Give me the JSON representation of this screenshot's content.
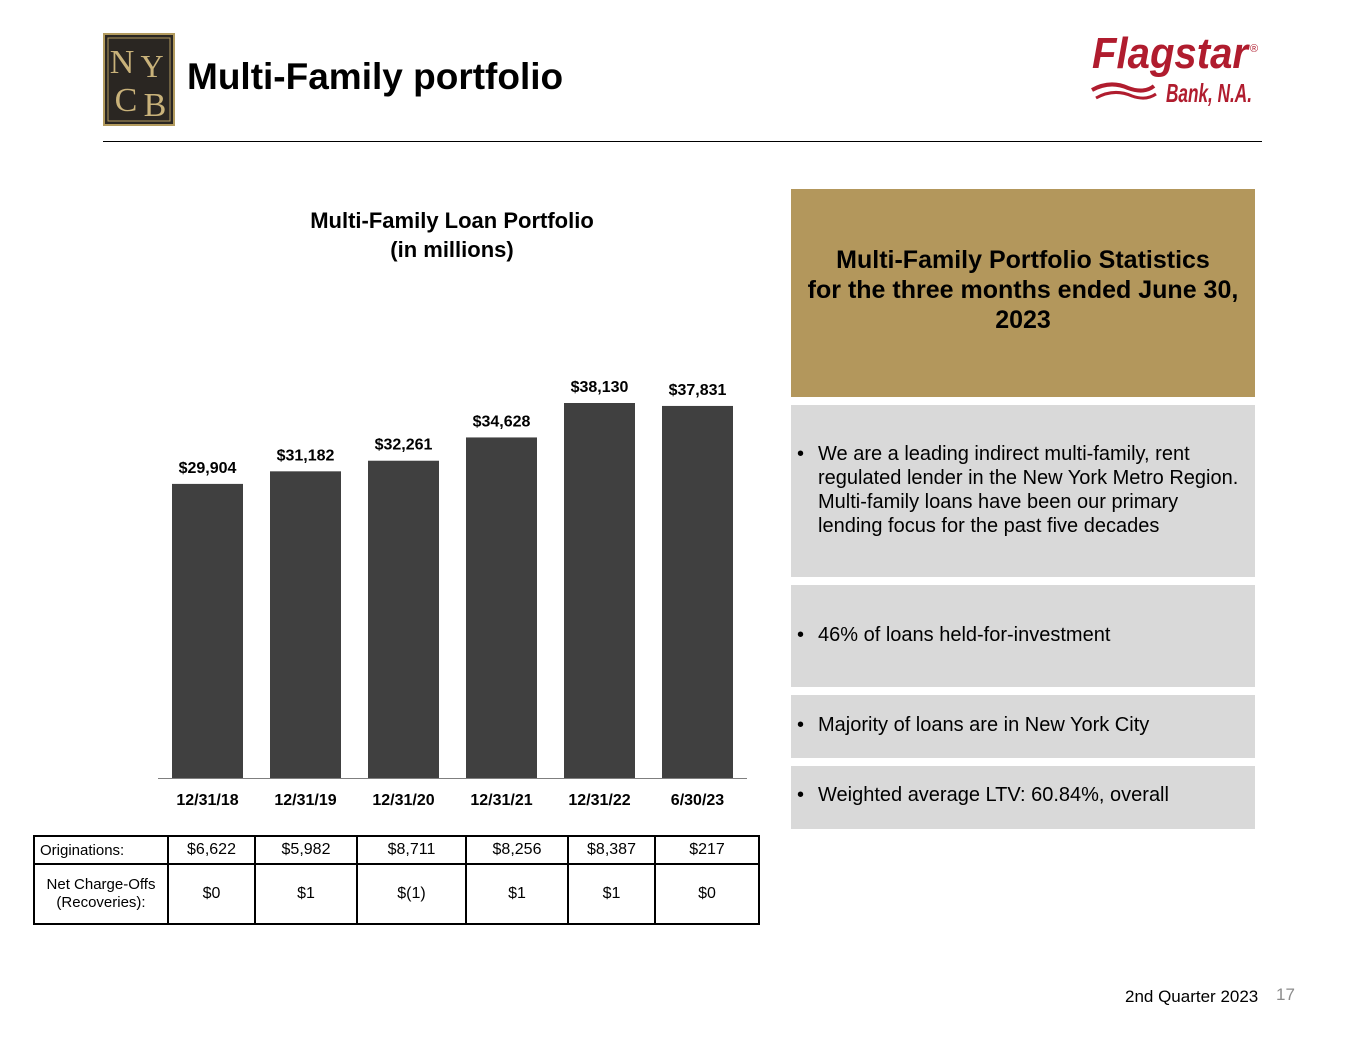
{
  "header": {
    "title": "Multi-Family portfolio",
    "logo_left_text": "NYCB",
    "logo_right_name": "Flagstar",
    "logo_right_sub": "Bank, N.A.",
    "logo_right_reg": "®"
  },
  "chart_data": {
    "type": "bar",
    "title": "Multi-Family Loan Portfolio",
    "subtitle": "(in millions)",
    "categories": [
      "12/31/18",
      "12/31/19",
      "12/31/20",
      "12/31/21",
      "12/31/22",
      "6/30/23"
    ],
    "values": [
      29904,
      31182,
      32261,
      34628,
      38130,
      37831
    ],
    "data_labels": [
      "$29,904",
      "$31,182",
      "$32,261",
      "$34,628",
      "$38,130",
      "$37,831"
    ],
    "ylim": [
      0,
      38130
    ],
    "grid": false,
    "bar_color": "#404040"
  },
  "table": {
    "rows": [
      {
        "label": "Originations:",
        "cells": [
          "$6,622",
          "$5,982",
          "$8,711",
          "$8,256",
          "$8,387",
          "$217"
        ]
      },
      {
        "label_line1": "Net Charge-Offs",
        "label_line2": "(Recoveries):",
        "cells": [
          "$0",
          "$1",
          "$(1)",
          "$1",
          "$1",
          "$0"
        ]
      }
    ]
  },
  "stats": {
    "header_line1": "Multi-Family Portfolio Statistics",
    "header_line2": "for the three months ended June 30,",
    "header_line3": "2023",
    "bullet_symbol": "•",
    "items": [
      "We are a leading indirect multi-family, rent regulated lender in the New York Metro Region. Multi-family loans have been our primary lending focus for the past five decades",
      "46% of loans held-for-investment",
      "Majority of loans are in New York City",
      "Weighted average LTV: 60.84%, overall"
    ]
  },
  "footer": {
    "quarter": "2nd Quarter 2023",
    "page": "17"
  },
  "colors": {
    "gold": "#b3975c",
    "panel_gray": "#d9d9d9",
    "flagstar_red": "#b01c2e",
    "bar": "#404040"
  }
}
